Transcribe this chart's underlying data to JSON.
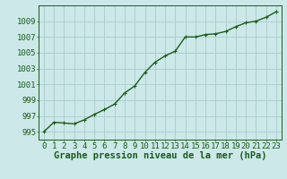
{
  "x": [
    0,
    1,
    2,
    3,
    4,
    5,
    6,
    7,
    8,
    9,
    10,
    11,
    12,
    13,
    14,
    15,
    16,
    17,
    18,
    19,
    20,
    21,
    22,
    23
  ],
  "y": [
    995.0,
    996.2,
    996.1,
    996.0,
    996.5,
    997.2,
    997.8,
    998.5,
    999.9,
    1000.8,
    1002.5,
    1003.8,
    1004.6,
    1005.2,
    1007.0,
    1007.0,
    1007.3,
    1007.4,
    1007.7,
    1008.3,
    1008.8,
    1009.0,
    1009.5,
    1010.2
  ],
  "line_color": "#1a5c1a",
  "marker": "+",
  "bg_color": "#cce8e8",
  "grid_color": "#aacccc",
  "xlabel": "Graphe pression niveau de la mer (hPa)",
  "ylim": [
    994.0,
    1011.0
  ],
  "xlim": [
    -0.5,
    23.5
  ],
  "yticks": [
    995,
    997,
    999,
    1001,
    1003,
    1005,
    1007,
    1009
  ],
  "xticks": [
    0,
    1,
    2,
    3,
    4,
    5,
    6,
    7,
    8,
    9,
    10,
    11,
    12,
    13,
    14,
    15,
    16,
    17,
    18,
    19,
    20,
    21,
    22,
    23
  ],
  "xlabel_fontsize": 7.5,
  "tick_fontsize": 6.5,
  "line_width": 1.0,
  "marker_size": 3.5
}
